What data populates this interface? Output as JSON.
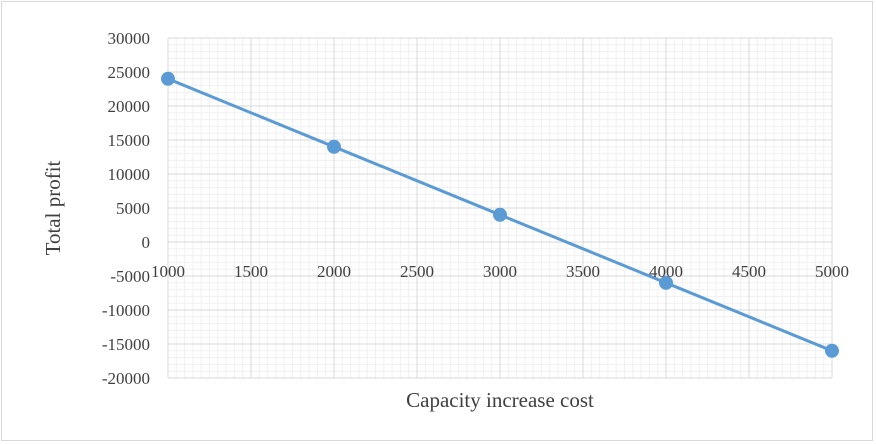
{
  "chart_data": {
    "type": "scatter",
    "title": "",
    "xlabel": "Capacity increase cost",
    "ylabel": "Total profit",
    "xlim": [
      1000,
      5000
    ],
    "ylim": [
      -20000,
      30000
    ],
    "x_ticks": [
      1000,
      1500,
      2000,
      2500,
      3000,
      3500,
      4000,
      4500,
      5000
    ],
    "y_ticks": [
      30000,
      25000,
      20000,
      15000,
      10000,
      5000,
      0,
      -5000,
      -10000,
      -15000,
      -20000
    ],
    "grid": true,
    "legend": "none",
    "series": [
      {
        "x": [
          1000,
          2000,
          3000,
          4000,
          5000
        ],
        "y": [
          24000,
          14000,
          4000,
          -6000,
          -16000
        ],
        "color": "#5b9bd5",
        "style": "line-with-markers"
      }
    ]
  }
}
